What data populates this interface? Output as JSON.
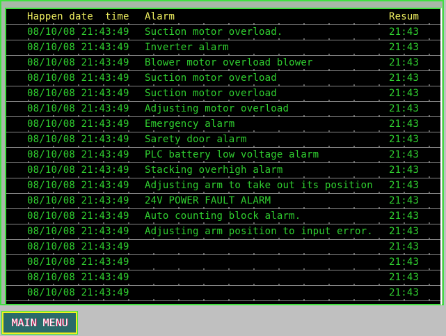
{
  "header": {
    "date_time": "Happen date  time",
    "alarm": "Alarm",
    "resume": "Resum"
  },
  "rows": [
    {
      "date": "08/10/08 21:43:49",
      "alarm": "Suction motor overload.",
      "resume": "21:43"
    },
    {
      "date": "08/10/08 21:43:49",
      "alarm": "Inverter alarm",
      "resume": "21:43"
    },
    {
      "date": "08/10/08 21:43:49",
      "alarm": "Blower motor overload blower",
      "resume": "21:43"
    },
    {
      "date": "08/10/08 21:43:49",
      "alarm": "Suction motor overload",
      "resume": "21:43"
    },
    {
      "date": "08/10/08 21:43:49",
      "alarm": "Suction motor overload",
      "resume": "21:43"
    },
    {
      "date": "08/10/08 21:43:49",
      "alarm": "Adjusting motor overload",
      "resume": "21:43"
    },
    {
      "date": "08/10/08 21:43:49",
      "alarm": "Emergency alarm",
      "resume": "21:43"
    },
    {
      "date": "08/10/08 21:43:49",
      "alarm": "Sarety door alarm",
      "resume": "21:43"
    },
    {
      "date": "08/10/08 21:43:49",
      "alarm": "PLC battery low voltage alarm",
      "resume": "21:43"
    },
    {
      "date": "08/10/08 21:43:49",
      "alarm": "Stacking overhigh alarm",
      "resume": "21:43"
    },
    {
      "date": "08/10/08 21:43:49",
      "alarm": "Adjusting arm to take out its position",
      "resume": "21:43"
    },
    {
      "date": "08/10/08 21:43:49",
      "alarm": "24V POWER FAULT ALARM",
      "resume": "21:43"
    },
    {
      "date": "08/10/08 21:43:49",
      "alarm": "Auto counting block alarm.",
      "resume": "21:43"
    },
    {
      "date": "08/10/08 21:43:49",
      "alarm": "Adjusting arm position to input error.",
      "resume": "21:43"
    },
    {
      "date": "08/10/08 21:43:49",
      "alarm": "",
      "resume": "21:43"
    },
    {
      "date": "08/10/08 21:43:49",
      "alarm": "",
      "resume": "21:43"
    },
    {
      "date": "08/10/08 21:43:49",
      "alarm": "",
      "resume": "21:43"
    },
    {
      "date": "08/10/08 21:43:49",
      "alarm": "",
      "resume": "21:43"
    }
  ],
  "buttons": {
    "main_menu": "MAIN MENU"
  },
  "colors": {
    "text": "#30d030",
    "header": "#f0f060",
    "border": "#40e040",
    "background": "#000000"
  }
}
